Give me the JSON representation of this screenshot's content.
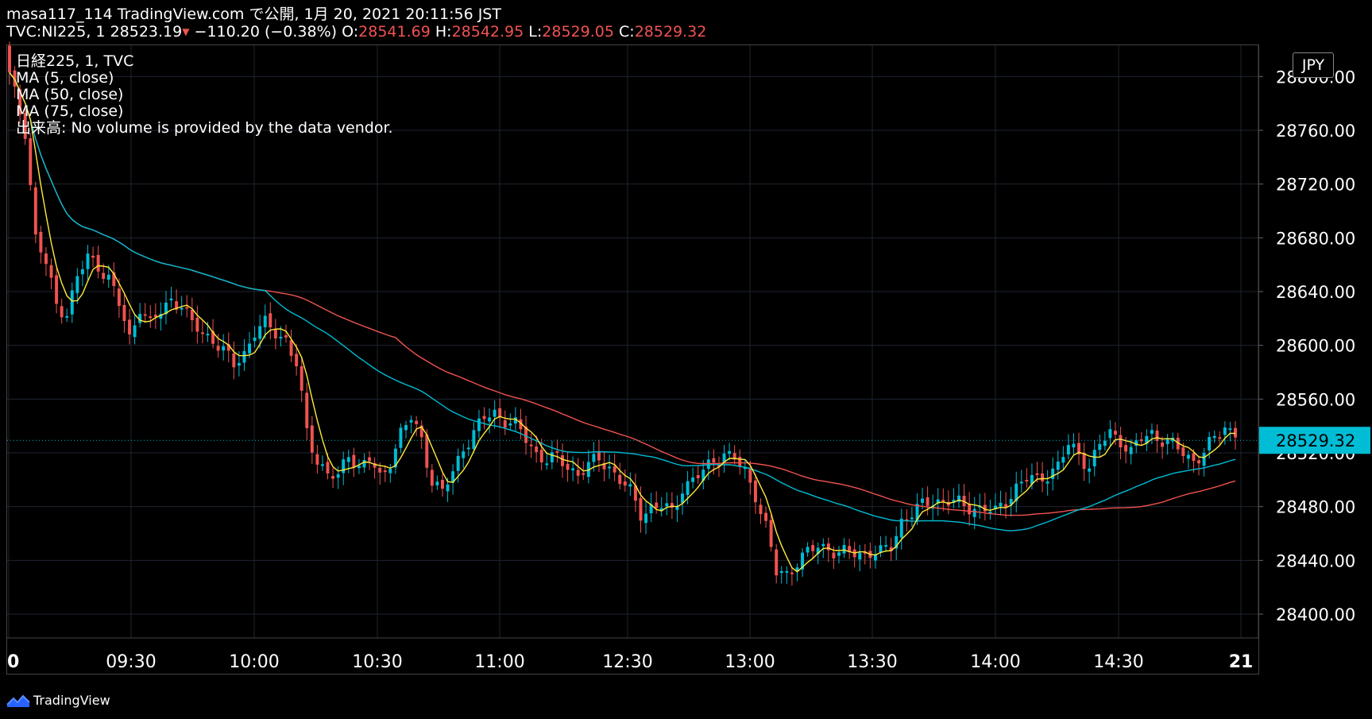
{
  "header": {
    "line1": "masa117_114 TradingView.com で公開, 1月 20, 2021 20:11:56 JST",
    "symbol": "TVC:NI225, 1",
    "last": "28523.19",
    "down_arrow": "▼",
    "change": "−110.20 (−0.38%)",
    "o_label": "O:",
    "o_value": "28541.69",
    "h_label": "H:",
    "h_value": "28542.95",
    "l_label": "L:",
    "l_value": "28529.05",
    "c_label": "C:",
    "c_value": "28529.32"
  },
  "legend": {
    "series": "日経225, 1, TVC",
    "ma5": "MA (5, close)",
    "ma50": "MA (50, close)",
    "ma75": "MA (75, close)",
    "volume": "出来高: No volume is provided by the data vendor."
  },
  "currency": "JPY",
  "brand": "TradingView",
  "colors": {
    "up": "#00bcd4",
    "down": "#ef5350",
    "ma5": "#ffeb3b",
    "ma50": "#00bcd4",
    "ma75": "#ef5350",
    "grid": "#1e2430",
    "axis_text": "#ffffff",
    "price_tag": "#00bcd4"
  },
  "chart_data": {
    "type": "candlestick",
    "y_ticks": [
      "28400.00",
      "28440.00",
      "28480.00",
      "28520.00",
      "28560.00",
      "28600.00",
      "28640.00",
      "28680.00",
      "28720.00",
      "28760.00",
      "28800.00"
    ],
    "ylim": [
      28380,
      28800
    ],
    "x_ticks": [
      {
        "label": "0",
        "bold": true
      },
      {
        "label": "09:30"
      },
      {
        "label": "10:00"
      },
      {
        "label": "10:30"
      },
      {
        "label": "11:00"
      },
      {
        "label": "12:30"
      },
      {
        "label": "13:00"
      },
      {
        "label": "13:30"
      },
      {
        "label": "14:00"
      },
      {
        "label": "14:30"
      },
      {
        "label": "21",
        "bold": true
      }
    ],
    "current_price": "28529.32",
    "close_anchors": [
      [
        0,
        28800
      ],
      [
        3,
        28760
      ],
      [
        5,
        28680
      ],
      [
        7,
        28660
      ],
      [
        9,
        28630
      ],
      [
        11,
        28625
      ],
      [
        13,
        28650
      ],
      [
        15,
        28665
      ],
      [
        17,
        28660
      ],
      [
        19,
        28650
      ],
      [
        21,
        28630
      ],
      [
        23,
        28605
      ],
      [
        25,
        28630
      ],
      [
        27,
        28615
      ],
      [
        29,
        28625
      ],
      [
        31,
        28635
      ],
      [
        33,
        28630
      ],
      [
        35,
        28615
      ],
      [
        37,
        28610
      ],
      [
        39,
        28605
      ],
      [
        41,
        28595
      ],
      [
        43,
        28585
      ],
      [
        45,
        28595
      ],
      [
        47,
        28610
      ],
      [
        49,
        28615
      ],
      [
        51,
        28610
      ],
      [
        53,
        28605
      ],
      [
        55,
        28585
      ],
      [
        57,
        28535
      ],
      [
        59,
        28515
      ],
      [
        61,
        28505
      ],
      [
        63,
        28500
      ],
      [
        65,
        28520
      ],
      [
        67,
        28510
      ],
      [
        69,
        28515
      ],
      [
        71,
        28500
      ],
      [
        73,
        28515
      ],
      [
        75,
        28535
      ],
      [
        77,
        28545
      ],
      [
        79,
        28530
      ],
      [
        81,
        28500
      ],
      [
        83,
        28490
      ],
      [
        85,
        28505
      ],
      [
        87,
        28525
      ],
      [
        89,
        28535
      ],
      [
        91,
        28545
      ],
      [
        93,
        28550
      ],
      [
        95,
        28545
      ],
      [
        97,
        28540
      ],
      [
        99,
        28530
      ],
      [
        101,
        28520
      ],
      [
        103,
        28515
      ],
      [
        105,
        28515
      ],
      [
        107,
        28510
      ],
      [
        109,
        28505
      ],
      [
        111,
        28510
      ],
      [
        113,
        28515
      ],
      [
        115,
        28510
      ],
      [
        117,
        28500
      ],
      [
        119,
        28490
      ],
      [
        121,
        28475
      ],
      [
        123,
        28480
      ],
      [
        125,
        28480
      ],
      [
        127,
        28475
      ],
      [
        129,
        28495
      ],
      [
        131,
        28500
      ],
      [
        133,
        28505
      ],
      [
        135,
        28515
      ],
      [
        137,
        28520
      ],
      [
        139,
        28515
      ],
      [
        141,
        28505
      ],
      [
        143,
        28490
      ],
      [
        145,
        28465
      ],
      [
        147,
        28430
      ],
      [
        149,
        28430
      ],
      [
        151,
        28440
      ],
      [
        153,
        28445
      ],
      [
        155,
        28450
      ],
      [
        157,
        28450
      ],
      [
        159,
        28445
      ],
      [
        161,
        28445
      ],
      [
        163,
        28445
      ],
      [
        165,
        28447
      ],
      [
        167,
        28445
      ],
      [
        169,
        28450
      ],
      [
        171,
        28470
      ],
      [
        173,
        28475
      ],
      [
        175,
        28480
      ],
      [
        177,
        28485
      ],
      [
        179,
        28485
      ],
      [
        181,
        28483
      ],
      [
        183,
        28480
      ],
      [
        185,
        28480
      ],
      [
        187,
        28478
      ],
      [
        189,
        28475
      ],
      [
        191,
        28485
      ],
      [
        193,
        28495
      ],
      [
        195,
        28500
      ],
      [
        197,
        28500
      ],
      [
        199,
        28505
      ],
      [
        201,
        28510
      ],
      [
        203,
        28525
      ],
      [
        205,
        28520
      ],
      [
        207,
        28510
      ],
      [
        209,
        28525
      ],
      [
        211,
        28535
      ],
      [
        213,
        28530
      ],
      [
        215,
        28520
      ],
      [
        217,
        28530
      ],
      [
        219,
        28535
      ],
      [
        221,
        28530
      ],
      [
        223,
        28525
      ],
      [
        225,
        28520
      ],
      [
        227,
        28515
      ],
      [
        229,
        28520
      ],
      [
        231,
        28530
      ],
      [
        233,
        28540
      ],
      [
        235,
        28535
      ]
    ]
  }
}
